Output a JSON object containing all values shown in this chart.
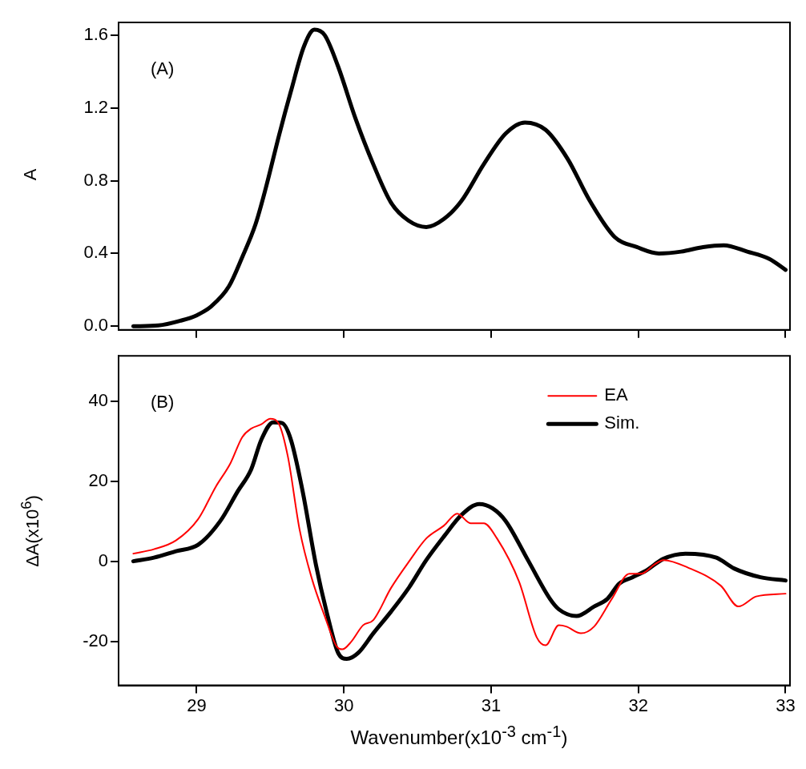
{
  "chart_data": [
    {
      "type": "line",
      "ylabel": "A",
      "annotations": [
        "(A)"
      ],
      "tick_labels": "y",
      "xlim": [
        28.47,
        33.03
      ],
      "xticks": [
        29,
        30,
        31,
        32,
        33
      ],
      "ylim": [
        -0.02,
        1.67
      ],
      "yticks": [
        {
          "value": 0,
          "label": "0.0"
        },
        0.4,
        0.8,
        1.2,
        1.6
      ],
      "grid": false,
      "legend": false,
      "marker": "none",
      "line_style": "solid",
      "series": [
        {
          "color": "#000000",
          "x": [
            28.57,
            28.74,
            28.89,
            29.0,
            29.1,
            29.22,
            29.31,
            29.4,
            29.47,
            29.56,
            29.64,
            29.73,
            29.8,
            29.87,
            29.96,
            30.08,
            30.2,
            30.32,
            30.44,
            30.56,
            30.68,
            30.8,
            30.95,
            31.1,
            31.23,
            31.37,
            31.52,
            31.67,
            31.84,
            31.99,
            32.14,
            32.29,
            32.44,
            32.58,
            32.74,
            32.89,
            33.0
          ],
          "values": [
            0.0,
            0.004,
            0.03,
            0.06,
            0.11,
            0.22,
            0.38,
            0.56,
            0.76,
            1.05,
            1.29,
            1.54,
            1.63,
            1.6,
            1.43,
            1.14,
            0.89,
            0.68,
            0.58,
            0.545,
            0.59,
            0.69,
            0.89,
            1.06,
            1.12,
            1.08,
            0.92,
            0.69,
            0.49,
            0.435,
            0.4,
            0.41,
            0.435,
            0.445,
            0.41,
            0.37,
            0.31
          ]
        }
      ]
    },
    {
      "type": "line",
      "xlabel": "Wavenumber(x10$^{-3}$  cm$^{-1}$)",
      "ylabel": "ΔA(x10$^{6}$)",
      "annotations": [
        "(B)"
      ],
      "xlim": [
        28.47,
        33.03
      ],
      "xticks": [
        29,
        30,
        31,
        32,
        33
      ],
      "ylim": [
        -31,
        51.3
      ],
      "yticks": [
        -20,
        0,
        20,
        40
      ],
      "grid": false,
      "legend": "top right",
      "marker": "none",
      "line_style": "solid",
      "series": [
        {
          "name": "EA",
          "color": "#ff0000",
          "x": [
            28.57,
            28.71,
            28.86,
            29.01,
            29.13,
            29.23,
            29.31,
            29.37,
            29.44,
            29.5,
            29.56,
            29.62,
            29.7,
            29.78,
            29.87,
            29.95,
            29.99,
            30.05,
            30.13,
            30.2,
            30.32,
            30.44,
            30.56,
            30.68,
            30.77,
            30.86,
            30.95,
            31.04,
            31.19,
            31.31,
            31.37,
            31.46,
            31.51,
            31.61,
            31.7,
            31.82,
            31.94,
            32.02,
            32.11,
            32.17,
            32.35,
            32.56,
            32.68,
            32.8,
            33.0
          ],
          "values": [
            1.9,
            3,
            5.2,
            10.5,
            18.6,
            24.5,
            31,
            33.1,
            34.2,
            35.6,
            34.2,
            26.1,
            7.8,
            -4,
            -13.7,
            -21.2,
            -22,
            -20.1,
            -16,
            -14.7,
            -6.7,
            -0.2,
            5.7,
            8.9,
            11.9,
            9.5,
            9.5,
            5.7,
            -5.1,
            -19,
            -21,
            -16,
            -16.3,
            -18,
            -16.3,
            -9.4,
            -3.1,
            -3.1,
            -0.8,
            0.3,
            -1.8,
            -6.1,
            -11.3,
            -8.8,
            -8.1
          ]
        },
        {
          "name": "Sim.",
          "color": "#000000",
          "x": [
            28.57,
            28.71,
            28.86,
            29.01,
            29.16,
            29.28,
            29.37,
            29.44,
            29.52,
            29.58,
            29.64,
            29.72,
            29.81,
            29.89,
            29.96,
            30.02,
            30.1,
            30.2,
            30.32,
            30.44,
            30.56,
            30.68,
            30.8,
            30.92,
            31.01,
            31.1,
            31.25,
            31.4,
            31.46,
            31.58,
            31.7,
            31.79,
            31.87,
            31.96,
            32.05,
            32.17,
            32.32,
            32.53,
            32.65,
            32.83,
            33.0
          ],
          "values": [
            0,
            0.9,
            2.5,
            4.1,
            10,
            17.5,
            22.9,
            30.4,
            34.7,
            34.5,
            30.4,
            17.5,
            -0.8,
            -13.7,
            -22.8,
            -24.4,
            -22.8,
            -18,
            -12.6,
            -6.7,
            0.3,
            6.2,
            11.6,
            14.3,
            13.2,
            10,
            0.3,
            -9.4,
            -12,
            -13.7,
            -11.3,
            -9.4,
            -5.6,
            -4,
            -2.4,
            0.6,
            1.9,
            0.9,
            -1.8,
            -4,
            -4.8
          ]
        }
      ]
    }
  ]
}
